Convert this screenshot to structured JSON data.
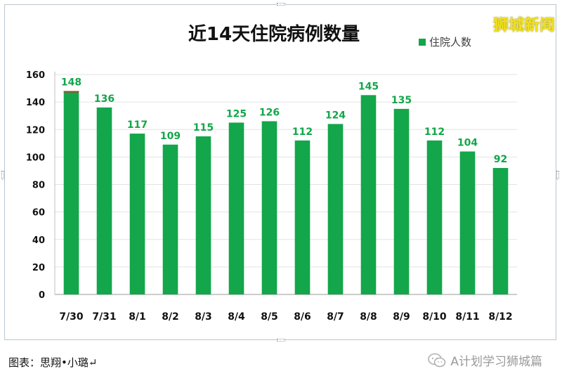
{
  "chart_data": {
    "type": "bar",
    "title": "近14天住院病例数量",
    "categories": [
      "7/30",
      "7/31",
      "8/1",
      "8/2",
      "8/3",
      "8/4",
      "8/5",
      "8/6",
      "8/7",
      "8/8",
      "8/9",
      "8/10",
      "8/11",
      "8/12"
    ],
    "series": [
      {
        "name": "住院人数",
        "values": [
          148,
          136,
          117,
          109,
          115,
          125,
          126,
          112,
          124,
          145,
          135,
          112,
          104,
          92
        ],
        "color": "#13a64a"
      }
    ],
    "data_labels": [
      "148",
      "136",
      "117",
      "109",
      "115",
      "125",
      "126",
      "112",
      "124",
      "145",
      "135",
      "112",
      "104",
      "92"
    ],
    "yticks": [
      "0",
      "20",
      "40",
      "60",
      "80",
      "100",
      "120",
      "140",
      "160"
    ],
    "ylim": [
      0,
      160
    ],
    "grid": true,
    "legend_position": "top-right"
  },
  "watermark": "狮城新闻",
  "credit": "图表：思翔•小璐↵",
  "source": "A计划学习狮城篇",
  "icons": {
    "source_icon": "wechat-icon"
  },
  "colors": {
    "bar": "#13a64a",
    "label": "#13a64a",
    "first_bar_top": "#c0392b"
  }
}
